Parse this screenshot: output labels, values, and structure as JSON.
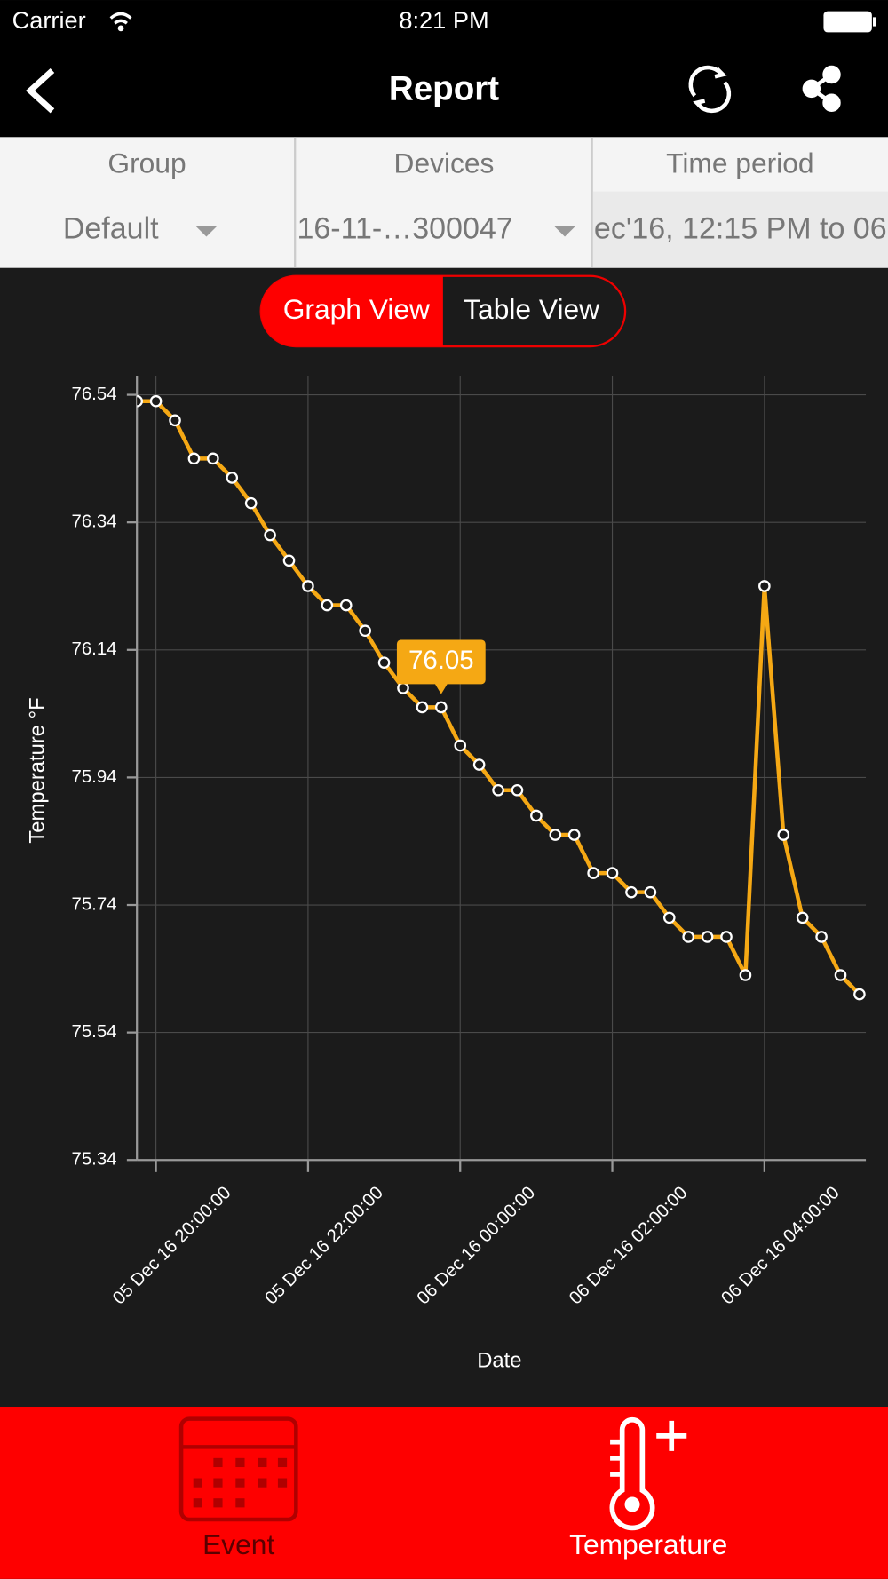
{
  "status_bar": {
    "carrier": "Carrier",
    "time": "8:21 PM"
  },
  "nav": {
    "title": "Report"
  },
  "filters": [
    {
      "label": "Group",
      "value": "Default"
    },
    {
      "label": "Devices",
      "value": "16-11-…300047"
    },
    {
      "label": "Time period",
      "value": "ec'16, 12:15 PM to 06"
    }
  ],
  "view_toggle": [
    "Graph View",
    "Table View"
  ],
  "chart_data": {
    "type": "line",
    "xlabel": "Date",
    "ylabel": "Temperature °F",
    "color": "#f5a814",
    "grid": true,
    "x": [
      "05 Dec 16 19:45:00",
      "05 Dec 16 20:00:00",
      "05 Dec 16 20:15:00",
      "05 Dec 16 20:30:00",
      "05 Dec 16 20:45:00",
      "05 Dec 16 21:00:00",
      "05 Dec 16 21:15:00",
      "05 Dec 16 21:30:00",
      "05 Dec 16 21:45:00",
      "05 Dec 16 22:00:00",
      "05 Dec 16 22:15:00",
      "05 Dec 16 22:30:00",
      "05 Dec 16 22:45:00",
      "05 Dec 16 23:00:00",
      "05 Dec 16 23:15:00",
      "05 Dec 16 23:30:00",
      "05 Dec 16 23:45:00",
      "06 Dec 16 00:00:00",
      "06 Dec 16 00:15:00",
      "06 Dec 16 00:30:00",
      "06 Dec 16 00:45:00",
      "06 Dec 16 01:00:00",
      "06 Dec 16 01:15:00",
      "06 Dec 16 01:30:00",
      "06 Dec 16 01:45:00",
      "06 Dec 16 02:00:00",
      "06 Dec 16 02:15:00",
      "06 Dec 16 02:30:00",
      "06 Dec 16 02:45:00",
      "06 Dec 16 03:00:00",
      "06 Dec 16 03:15:00",
      "06 Dec 16 03:30:00",
      "06 Dec 16 03:45:00",
      "06 Dec 16 04:00:00",
      "06 Dec 16 04:15:00",
      "06 Dec 16 04:30:00",
      "06 Dec 16 04:45:00",
      "06 Dec 16 05:00:00",
      "06 Dec 16 05:15:00"
    ],
    "values": [
      76.53,
      76.53,
      76.5,
      76.44,
      76.44,
      76.41,
      76.37,
      76.32,
      76.28,
      76.24,
      76.21,
      76.21,
      76.17,
      76.12,
      76.08,
      76.05,
      76.05,
      75.99,
      75.96,
      75.92,
      75.92,
      75.88,
      75.85,
      75.85,
      75.79,
      75.79,
      75.76,
      75.76,
      75.72,
      75.69,
      75.69,
      75.69,
      75.63,
      76.24,
      75.85,
      75.72,
      75.69,
      75.63,
      75.6
    ],
    "xlim": [
      "05 Dec 16 19:45:00",
      "06 Dec 16 05:20:00"
    ],
    "xticks": [
      "05 Dec 16 20:00:00",
      "05 Dec 16 22:00:00",
      "06 Dec 16 00:00:00",
      "06 Dec 16 02:00:00",
      "06 Dec 16 04:00:00"
    ],
    "ylim": [
      75.34,
      76.57
    ],
    "yticks": [
      75.34,
      75.54,
      75.74,
      75.94,
      76.14,
      76.34,
      76.54
    ],
    "annotations": [
      {
        "x": "05 Dec 16 23:45:00",
        "y": 76.05,
        "text": "76.05"
      }
    ]
  },
  "tabs": [
    "Event",
    "Temperature"
  ]
}
